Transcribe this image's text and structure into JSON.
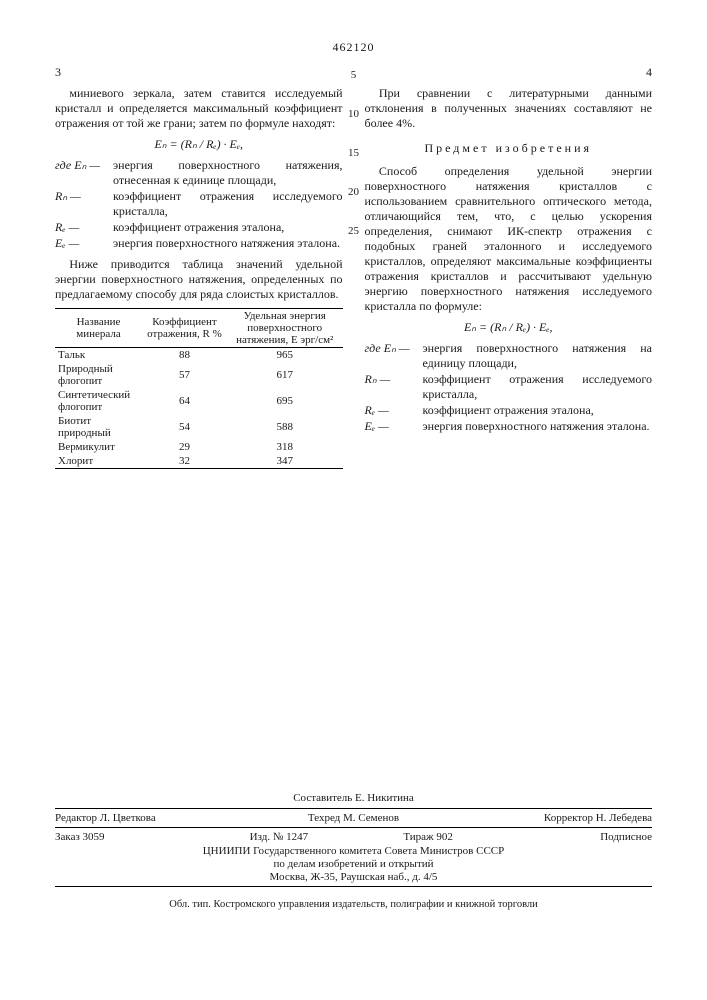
{
  "doc_number": "462120",
  "left_colnum": "3",
  "right_colnum": "4",
  "markers": [
    "5",
    "10",
    "15",
    "20",
    "25"
  ],
  "left": {
    "para1": "миниевого зеркала, затем ставится исследуемый кристалл и определяется максимальный коэффициент отражения от той же грани; затем по формуле находят:",
    "formula": "Eₙ = (Rₙ / Rₑ) · Eₑ,",
    "def_lead": "где",
    "defs": [
      {
        "sym": "Eₙ —",
        "txt": "энергия поверхностного натяжения, отнесенная к единице площади,"
      },
      {
        "sym": "Rₙ —",
        "txt": "коэффициент отражения исследуемого кристалла,"
      },
      {
        "sym": "Rₑ —",
        "txt": "коэффициент отражения эталона,"
      },
      {
        "sym": "Eₑ —",
        "txt": "энергия поверхностного натяжения эталона."
      }
    ],
    "para2": "Ниже приводится таблица значений удельной энергии поверхностного натяжения, определенных по предлагаемому способу для ряда слоистых кристаллов.",
    "table": {
      "head": [
        "Название минерала",
        "Коэффициент отражения, R %",
        "Удельная энергия поверхностного натяжения, Е эрг/см²"
      ],
      "rows": [
        [
          "Тальк",
          "88",
          "965"
        ],
        [
          "Природный флогопит",
          "57",
          "617"
        ],
        [
          "Синтетический флогопит",
          "64",
          "695"
        ],
        [
          "Биотит природный",
          "54",
          "588"
        ],
        [
          "Вермикулит",
          "29",
          "318"
        ],
        [
          "Хлорит",
          "32",
          "347"
        ]
      ]
    }
  },
  "right": {
    "para1": "При сравнении с литературными данными отклонения в полученных значениях составляют не более 4%.",
    "claimhead": "Предмет изобретения",
    "claim": "Способ определения удельной энергии поверхностного натяжения кристаллов с использованием сравнительного оптического метода, отличающийся тем, что, с целью ускорения определения, снимают ИК-спектр отражения с подобных граней эталонного и исследуемого кристаллов, определяют максимальные коэффициенты отражения кристаллов и рассчитывают удельную энергию поверхностного натяжения исследуемого кристалла по формуле:",
    "formula": "Eₙ = (Rₙ / Rₑ) · Eₑ,",
    "def_lead": "где",
    "defs": [
      {
        "sym": "Eₙ —",
        "txt": "энергия поверхностного натяжения на единицу площади,"
      },
      {
        "sym": "Rₙ —",
        "txt": "коэффициент отражения исследуемого кристалла,"
      },
      {
        "sym": "Rₑ —",
        "txt": "коэффициент отражения эталона,"
      },
      {
        "sym": "Eₑ —",
        "txt": "энергия поверхностного натяжения эталона."
      }
    ]
  },
  "footer": {
    "composer": "Составитель Е. Никитина",
    "editor": "Редактор Л. Цветкова",
    "tech": "Техред М. Семенов",
    "corrector": "Корректор Н. Лебедева",
    "order": "Заказ 3059",
    "izd": "Изд. № 1247",
    "tirazh": "Тираж 902",
    "sign": "Подписное",
    "org": "ЦНИИПИ Государственного комитета Совета Министров СССР",
    "org2": "по делам изобретений и открытий",
    "addr": "Москва, Ж-35, Раушская наб., д. 4/5",
    "printer": "Обл. тип. Костромского управления издательств, полиграфии и книжной торговли"
  }
}
